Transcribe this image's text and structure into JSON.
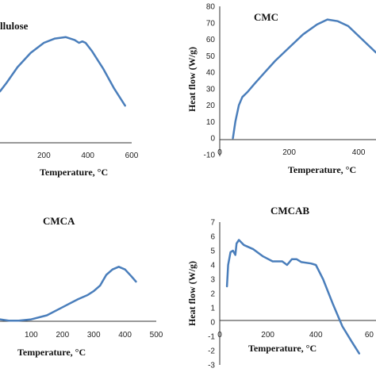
{
  "chart_data": [
    {
      "type": "line",
      "title": "Cellulose",
      "title_shown": "llulose",
      "xlabel": "Temperature, °C",
      "ylabel": "",
      "xlim": [
        0,
        600
      ],
      "x_ticks": [
        "200",
        "400",
        "600"
      ],
      "ylim": [
        0,
        100
      ],
      "y_ticks": [],
      "series": [
        {
          "x": [
            0,
            30,
            80,
            140,
            200,
            250,
            300,
            340,
            360,
            375,
            390,
            420,
            470,
            520,
            570
          ],
          "y": [
            36,
            42,
            53,
            63,
            70,
            73,
            74,
            72,
            70,
            71,
            70,
            64,
            52,
            38,
            26
          ]
        }
      ]
    },
    {
      "type": "line",
      "title": "CMC",
      "xlabel": "Temperature, °C",
      "ylabel": "Heat flow (W/g)",
      "xlim": [
        0,
        450
      ],
      "x_ticks": [
        "0",
        "200",
        "400"
      ],
      "ylim": [
        -10,
        80
      ],
      "y_ticks": [
        "-10",
        "0",
        "10",
        "20",
        "30",
        "40",
        "50",
        "60",
        "70",
        "80"
      ],
      "series": [
        {
          "x": [
            38,
            45,
            55,
            65,
            80,
            100,
            130,
            160,
            200,
            240,
            280,
            310,
            340,
            370,
            400,
            430,
            450
          ],
          "y": [
            0,
            10,
            20,
            25,
            28,
            33,
            40,
            47,
            55,
            63,
            69,
            72,
            71,
            68,
            62,
            56,
            52
          ]
        }
      ]
    },
    {
      "type": "line",
      "title": "CMCA",
      "xlabel": "Temperature, °C",
      "ylabel": "",
      "xlim": [
        0,
        500
      ],
      "x_ticks": [
        "100",
        "200",
        "300",
        "400",
        "500"
      ],
      "ylim": [
        0,
        100
      ],
      "y_ticks": [],
      "series": [
        {
          "x": [
            0,
            30,
            60,
            100,
            150,
            200,
            250,
            280,
            300,
            320,
            340,
            360,
            380,
            400,
            420,
            435
          ],
          "y": [
            22,
            21,
            21,
            22,
            25,
            31,
            37,
            40,
            43,
            47,
            55,
            59,
            61,
            59,
            54,
            50
          ]
        }
      ]
    },
    {
      "type": "line",
      "title": "CMCAB",
      "xlabel": "Temperature, °C",
      "ylabel": "Heat flow (W/g)",
      "xlim": [
        0,
        650
      ],
      "x_ticks": [
        "0",
        "200",
        "400",
        "60"
      ],
      "ylim": [
        -3,
        7
      ],
      "y_ticks": [
        "-3",
        "-2",
        "-1",
        "0",
        "1",
        "2",
        "3",
        "4",
        "5",
        "6",
        "7"
      ],
      "series": [
        {
          "x": [
            30,
            35,
            45,
            55,
            65,
            70,
            80,
            100,
            140,
            180,
            220,
            260,
            280,
            300,
            320,
            340,
            380,
            400,
            430,
            470,
            510,
            550,
            580
          ],
          "y": [
            2.5,
            4.0,
            4.9,
            5.0,
            4.7,
            5.5,
            5.75,
            5.4,
            5.1,
            4.6,
            4.25,
            4.25,
            4.0,
            4.4,
            4.4,
            4.2,
            4.1,
            4.0,
            3.0,
            1.3,
            -0.3,
            -1.4,
            -2.2
          ]
        }
      ]
    }
  ]
}
